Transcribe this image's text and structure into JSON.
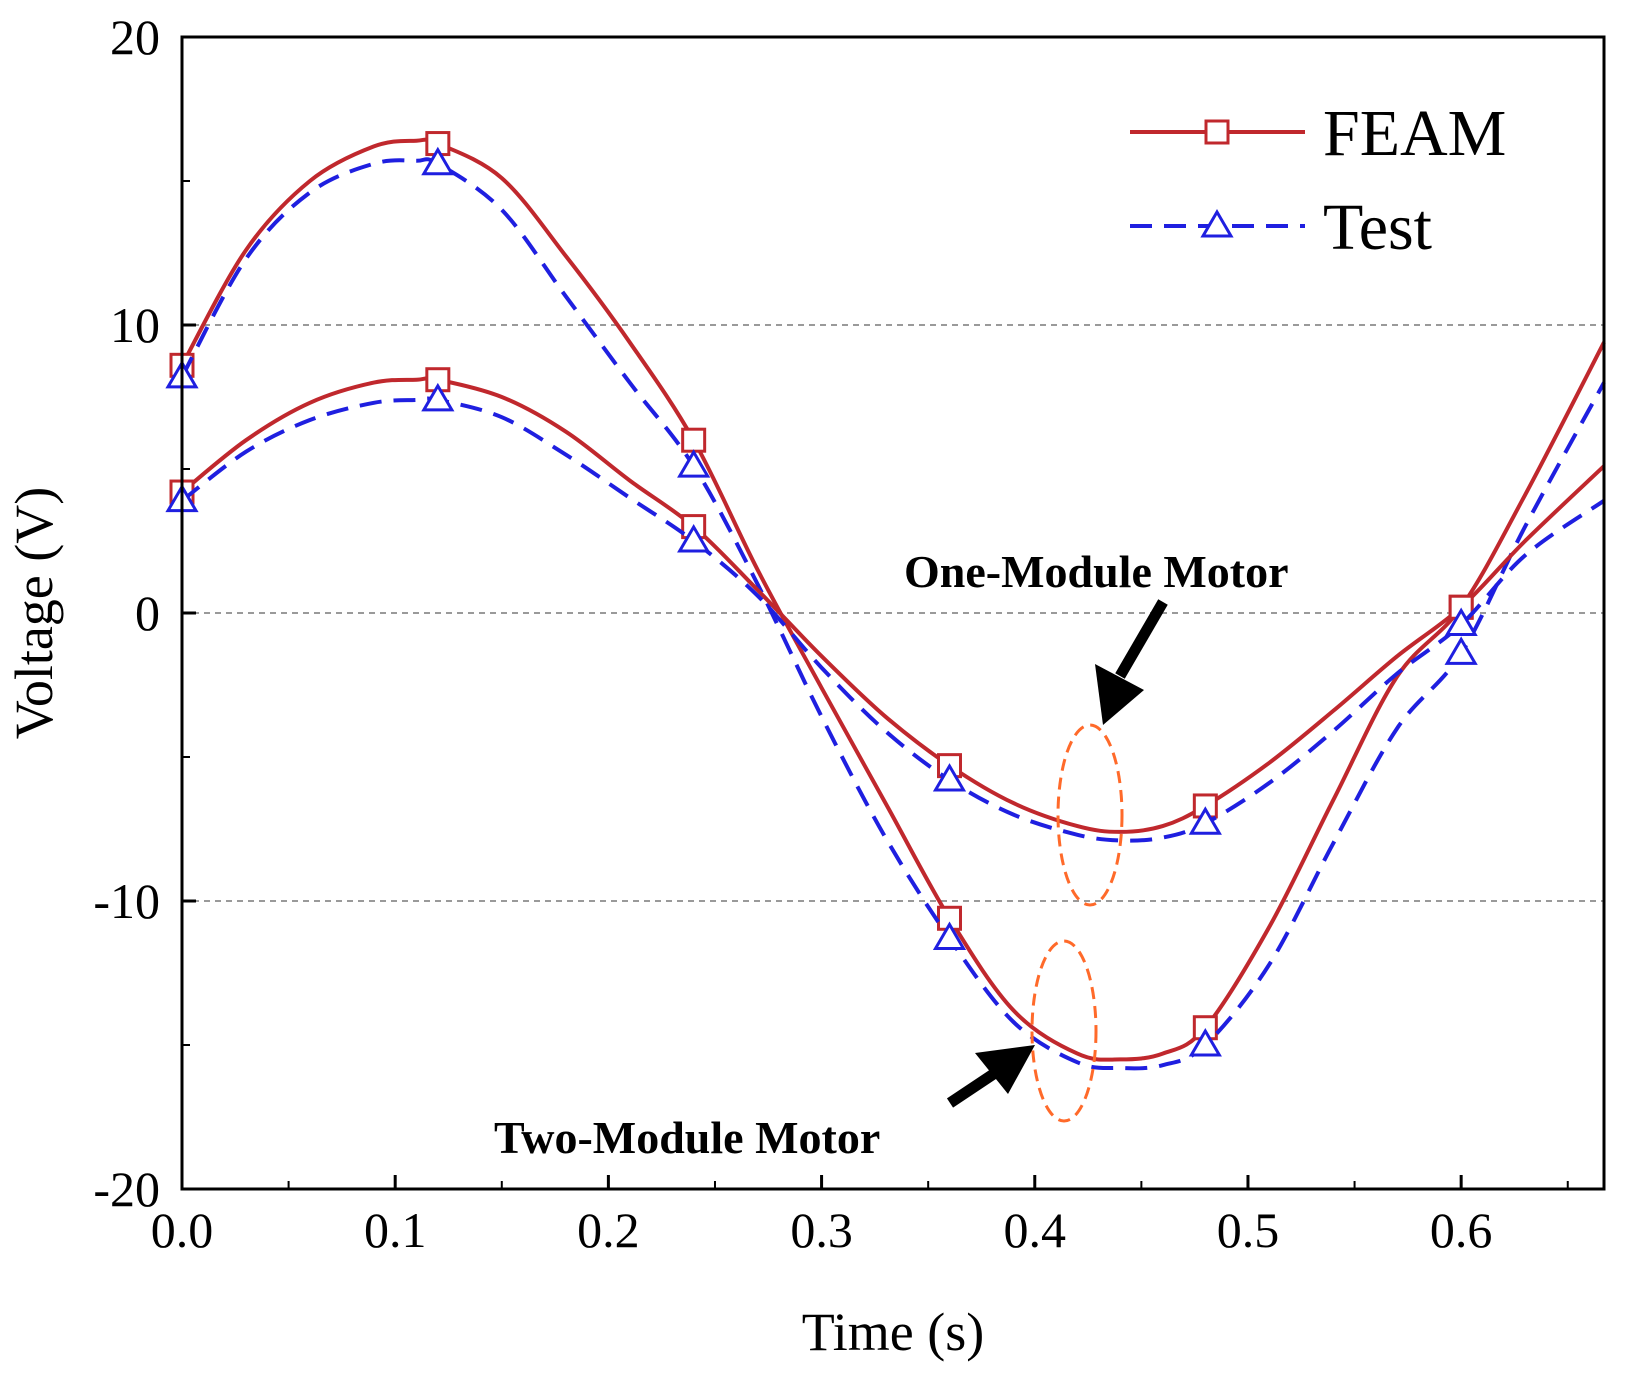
{
  "chart_data": {
    "type": "line",
    "xlabel": "Time (s)",
    "ylabel": "Voltage (V)",
    "xlim": [
      0.0,
      0.667
    ],
    "ylim": [
      -20,
      20
    ],
    "xticks": [
      0.0,
      0.1,
      0.2,
      0.3,
      0.4,
      0.5,
      0.6
    ],
    "xtick_labels": [
      "0.0",
      "0.1",
      "0.2",
      "0.3",
      "0.4",
      "0.5",
      "0.6"
    ],
    "yticks": [
      -20,
      -10,
      0,
      10,
      20
    ],
    "ytick_labels": [
      "-20",
      "-10",
      "0",
      "10",
      "20"
    ],
    "grid": "dashed horizontal at y = -10, 0, 10",
    "legend": {
      "position": "top-right",
      "entries": [
        {
          "label": "FEAM",
          "style": "solid",
          "marker": "square"
        },
        {
          "label": "Test",
          "style": "dashed",
          "marker": "triangle"
        }
      ]
    },
    "annotations": [
      {
        "text": "One-Module Motor",
        "points_to": "trough near t = 0.43 s"
      },
      {
        "text": "Two-Module Motor",
        "points_to": "trough near t = 0.41 s"
      }
    ],
    "series": [
      {
        "name": "FEAM",
        "group": "Two-Module Motor",
        "x": [
          0.0,
          0.03,
          0.06,
          0.09,
          0.11,
          0.12,
          0.15,
          0.18,
          0.21,
          0.24,
          0.27,
          0.3,
          0.33,
          0.36,
          0.39,
          0.42,
          0.44,
          0.46,
          0.48,
          0.51,
          0.54,
          0.57,
          0.6,
          0.63,
          0.667
        ],
        "y": [
          8.6,
          12.6,
          15.0,
          16.2,
          16.4,
          16.3,
          15.1,
          12.4,
          9.4,
          6.0,
          1.5,
          -2.6,
          -6.6,
          -10.6,
          -13.8,
          -15.3,
          -15.5,
          -15.3,
          -14.4,
          -10.9,
          -6.5,
          -2.2,
          0.2,
          4.1,
          9.4
        ],
        "marker_x": [
          0.0,
          0.12,
          0.24,
          0.36,
          0.48,
          0.6
        ],
        "marker_y": [
          8.6,
          16.3,
          6.0,
          -10.6,
          -14.4,
          0.2
        ]
      },
      {
        "name": "Test",
        "group": "Two-Module Motor",
        "x": [
          0.0,
          0.03,
          0.06,
          0.09,
          0.11,
          0.12,
          0.15,
          0.18,
          0.21,
          0.24,
          0.27,
          0.3,
          0.33,
          0.36,
          0.39,
          0.42,
          0.44,
          0.46,
          0.48,
          0.51,
          0.54,
          0.57,
          0.6,
          0.63,
          0.667
        ],
        "y": [
          8.2,
          12.3,
          14.6,
          15.6,
          15.7,
          15.6,
          14.0,
          11.0,
          8.0,
          5.1,
          1.0,
          -3.6,
          -7.8,
          -11.3,
          -14.2,
          -15.6,
          -15.8,
          -15.7,
          -15.0,
          -12.2,
          -8.0,
          -4.0,
          -1.4,
          3.0,
          8.0
        ],
        "marker_x": [
          0.0,
          0.12,
          0.24,
          0.36,
          0.48,
          0.6
        ],
        "marker_y": [
          8.2,
          15.6,
          5.1,
          -11.3,
          -15.0,
          -1.4
        ]
      },
      {
        "name": "FEAM",
        "group": "One-Module Motor",
        "x": [
          0.0,
          0.03,
          0.06,
          0.09,
          0.11,
          0.12,
          0.15,
          0.18,
          0.21,
          0.24,
          0.27,
          0.3,
          0.33,
          0.36,
          0.39,
          0.42,
          0.44,
          0.46,
          0.48,
          0.51,
          0.54,
          0.57,
          0.6,
          0.63,
          0.667
        ],
        "y": [
          4.2,
          6.0,
          7.3,
          8.0,
          8.1,
          8.1,
          7.5,
          6.3,
          4.6,
          3.0,
          0.8,
          -1.5,
          -3.6,
          -5.3,
          -6.6,
          -7.4,
          -7.6,
          -7.4,
          -6.7,
          -5.2,
          -3.4,
          -1.5,
          0.2,
          2.5,
          5.1
        ],
        "marker_x": [
          0.0,
          0.12,
          0.24,
          0.36,
          0.48,
          0.6
        ],
        "marker_y": [
          4.2,
          8.1,
          3.0,
          -5.3,
          -6.7,
          0.2
        ]
      },
      {
        "name": "Test",
        "group": "One-Module Motor",
        "x": [
          0.0,
          0.03,
          0.06,
          0.09,
          0.11,
          0.12,
          0.15,
          0.18,
          0.21,
          0.24,
          0.27,
          0.3,
          0.33,
          0.36,
          0.39,
          0.42,
          0.44,
          0.46,
          0.48,
          0.51,
          0.54,
          0.57,
          0.6,
          0.63,
          0.667
        ],
        "y": [
          3.9,
          5.6,
          6.7,
          7.3,
          7.4,
          7.4,
          6.8,
          5.5,
          4.0,
          2.5,
          0.6,
          -1.9,
          -4.1,
          -5.8,
          -7.0,
          -7.7,
          -7.9,
          -7.8,
          -7.3,
          -5.9,
          -4.1,
          -2.1,
          -0.4,
          2.0,
          3.9
        ],
        "marker_x": [
          0.0,
          0.12,
          0.24,
          0.36,
          0.48,
          0.6
        ],
        "marker_y": [
          3.9,
          7.4,
          2.5,
          -5.8,
          -7.3,
          -0.4
        ]
      }
    ]
  },
  "colors": {
    "feam": "#c0282d",
    "test": "#1f1fe0",
    "ellipse": "#ff6a2a",
    "grid": "#9a9a9a",
    "axis": "#000000"
  }
}
